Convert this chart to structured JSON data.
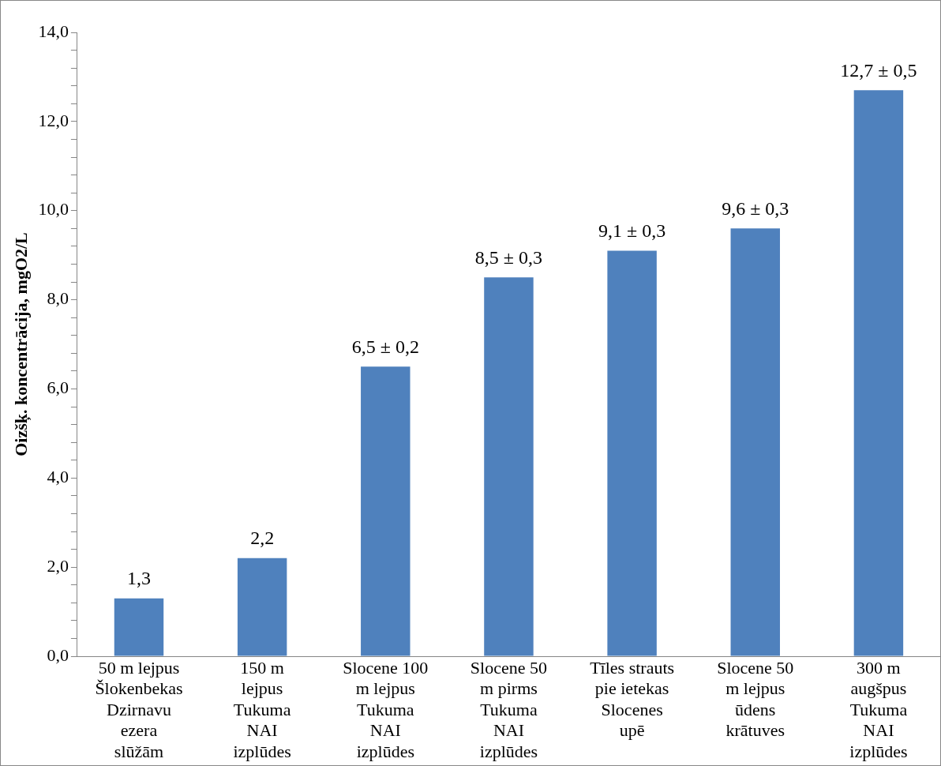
{
  "chart_data": {
    "type": "bar",
    "ylabel": "Oizšķ. koncentrācija, mgO2/L",
    "categories": [
      "50 m lejpus\nŠlokenbekas\nDzirnavu\nezera\nslūžām",
      "150 m\nlejpus\nTukuma\nNAI\nizplūdes",
      "Slocene 100\nm lejpus\nTukuma\nNAI\nizplūdes",
      "Slocene 50\nm pirms\nTukuma\nNAI\nizplūdes",
      "Tīles strauts\npie ietekas\nSlocenes\nupē",
      "Slocene 50\nm lejpus\nūdens\nkrātuves",
      "300 m\naugšpus\nTukuma\nNAI\nizplūdes"
    ],
    "values": [
      1.3,
      2.2,
      6.5,
      8.5,
      9.1,
      9.6,
      12.7
    ],
    "value_labels": [
      "1,3",
      "2,2",
      "6,5 ± 0,2",
      "8,5 ± 0,3",
      "9,1 ± 0,3",
      "9,6 ± 0,3",
      "12,7 ± 0,5"
    ],
    "color": "#4f81bd",
    "ylim": [
      0,
      14
    ],
    "yticks": [
      {
        "value": 0,
        "label": "0,0"
      },
      {
        "value": 0.4,
        "label": null
      },
      {
        "value": 0.8,
        "label": null
      },
      {
        "value": 1.2,
        "label": null
      },
      {
        "value": 1.6,
        "label": null
      },
      {
        "value": 2,
        "label": "2,0"
      },
      {
        "value": 2.4,
        "label": null
      },
      {
        "value": 2.8,
        "label": null
      },
      {
        "value": 3.2,
        "label": null
      },
      {
        "value": 3.6,
        "label": null
      },
      {
        "value": 4,
        "label": "4,0"
      },
      {
        "value": 4.4,
        "label": null
      },
      {
        "value": 4.8,
        "label": null
      },
      {
        "value": 5.2,
        "label": null
      },
      {
        "value": 5.6,
        "label": null
      },
      {
        "value": 6,
        "label": "6,0"
      },
      {
        "value": 6.4,
        "label": null
      },
      {
        "value": 6.8,
        "label": null
      },
      {
        "value": 7.2,
        "label": null
      },
      {
        "value": 7.6,
        "label": null
      },
      {
        "value": 8,
        "label": "8,0"
      },
      {
        "value": 8.4,
        "label": null
      },
      {
        "value": 8.8,
        "label": null
      },
      {
        "value": 9.2,
        "label": null
      },
      {
        "value": 9.6,
        "label": null
      },
      {
        "value": 10,
        "label": "10,0"
      },
      {
        "value": 10.4,
        "label": null
      },
      {
        "value": 10.8,
        "label": null
      },
      {
        "value": 11.2,
        "label": null
      },
      {
        "value": 11.6,
        "label": null
      },
      {
        "value": 12,
        "label": "12,0"
      },
      {
        "value": 12.4,
        "label": null
      },
      {
        "value": 12.8,
        "label": null
      },
      {
        "value": 13.2,
        "label": null
      },
      {
        "value": 13.6,
        "label": null
      },
      {
        "value": 14,
        "label": "14,0"
      }
    ],
    "grid": false,
    "legend": false
  }
}
